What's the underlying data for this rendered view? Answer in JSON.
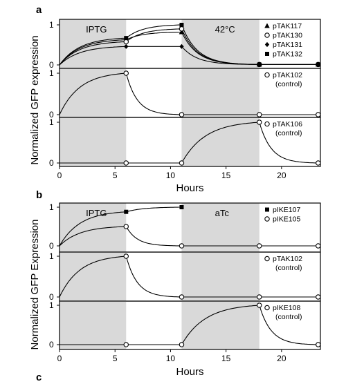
{
  "chart_data": [
    {
      "figure_label": "a",
      "type": "line",
      "xlabel": "Hours",
      "ylabel": "Normalized GFP expression",
      "xlim": [
        0,
        23.5
      ],
      "xticks": [
        0,
        5,
        10,
        15,
        20
      ],
      "shaded_intervals": [
        [
          0,
          6
        ],
        [
          11,
          18
        ]
      ],
      "conditions": [
        "IPTG",
        "42°C"
      ],
      "panels": [
        {
          "ylim": [
            0,
            1
          ],
          "yticks": [
            "1",
            "0"
          ],
          "legend_position": "top-right",
          "series": [
            {
              "name": "pTAK117",
              "marker": "triangle",
              "x": [
                6,
                11,
                18,
                23.3
              ],
              "y": [
                0.63,
                0.82,
                0.01,
                0.01
              ]
            },
            {
              "name": "pTAK130",
              "marker": "open-circle",
              "x": [
                6,
                11,
                18,
                23.3
              ],
              "y": [
                0.58,
                0.9,
                0.01,
                0.01
              ]
            },
            {
              "name": "pTAK131",
              "marker": "filled-diamond",
              "x": [
                6,
                11,
                18,
                23.3
              ],
              "y": [
                0.46,
                0.46,
                0.01,
                0.01
              ]
            },
            {
              "name": "pTAK132",
              "marker": "filled-square",
              "x": [
                6,
                11,
                18,
                23.3
              ],
              "y": [
                0.67,
                1.0,
                0.01,
                0.01
              ]
            }
          ]
        },
        {
          "ylim": [
            0,
            1
          ],
          "yticks": [
            "1",
            "0"
          ],
          "legend_position": "top-right",
          "series": [
            {
              "name": "pTAK102",
              "name_line2": "(control)",
              "marker": "open-circle",
              "x": [
                6,
                11,
                18,
                23.3
              ],
              "y": [
                1.0,
                0.0,
                0.0,
                0.0
              ]
            }
          ]
        },
        {
          "ylim": [
            0,
            1
          ],
          "yticks": [
            "1",
            "0"
          ],
          "legend_position": "top-right",
          "series": [
            {
              "name": "pTAK106",
              "name_line2": "(control)",
              "marker": "open-circle",
              "x": [
                6,
                11,
                18,
                23.3
              ],
              "y": [
                0.0,
                0.0,
                1.0,
                0.0
              ]
            }
          ]
        }
      ]
    },
    {
      "figure_label": "b",
      "type": "line",
      "xlabel": "Hours",
      "ylabel": "Normalized GFP Expression",
      "xlim": [
        0,
        23.5
      ],
      "xticks": [
        0,
        5,
        10,
        15,
        20
      ],
      "shaded_intervals": [
        [
          0,
          6
        ],
        [
          11,
          18
        ]
      ],
      "conditions": [
        "IPTG",
        "aTc"
      ],
      "panels": [
        {
          "ylim": [
            0,
            1
          ],
          "yticks": [
            "1",
            "0"
          ],
          "legend_position": "top-right",
          "series": [
            {
              "name": "pIKE107",
              "marker": "filled-square",
              "x": [
                6,
                11
              ],
              "y": [
                0.88,
                1.0
              ]
            },
            {
              "name": "pIKE105",
              "marker": "open-circle",
              "x": [
                6,
                11,
                18,
                23.3
              ],
              "y": [
                0.5,
                0.0,
                0.0,
                0.0
              ]
            }
          ]
        },
        {
          "ylim": [
            0,
            1
          ],
          "yticks": [
            "1",
            "0"
          ],
          "legend_position": "top-right",
          "series": [
            {
              "name": "pTAK102",
              "name_line2": "(control)",
              "marker": "open-circle",
              "x": [
                6,
                11,
                18,
                23.3
              ],
              "y": [
                1.0,
                0.0,
                0.0,
                0.0
              ]
            }
          ]
        },
        {
          "ylim": [
            0,
            1
          ],
          "yticks": [
            "1",
            "0"
          ],
          "legend_position": "top-right",
          "series": [
            {
              "name": "pIKE108",
              "name_line2": "(control)",
              "marker": "open-circle",
              "x": [
                6,
                11,
                18,
                23.3
              ],
              "y": [
                0.0,
                0.0,
                1.0,
                0.0
              ]
            }
          ]
        }
      ]
    }
  ],
  "next_label": "c"
}
